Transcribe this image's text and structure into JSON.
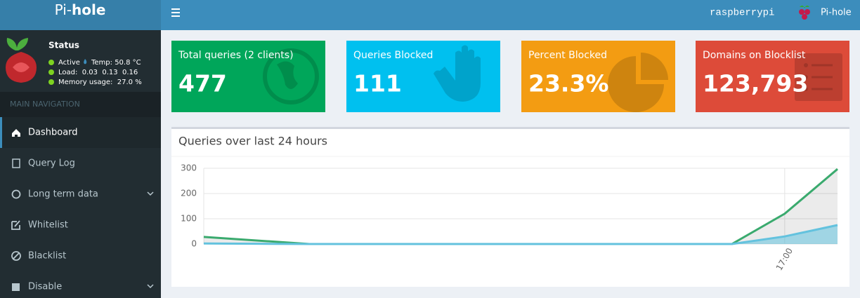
{
  "header": {
    "brand_prefix": "Pi-",
    "brand_bold": "hole",
    "hostname": "raspberrypi",
    "user": "Pi-hole"
  },
  "sidebar": {
    "status_title": "Status",
    "status": [
      "Active",
      "Temp: 50.8 °C",
      "Load:  0.03  0.13  0.16",
      "Memory usage:  27.0 %"
    ],
    "nav_header": "MAIN NAVIGATION",
    "nav": [
      "Dashboard",
      "Query Log",
      "Long term data",
      "Whitelist",
      "Blacklist",
      "Disable"
    ]
  },
  "boxes": [
    {
      "label": "Total queries (2 clients)",
      "value": "477"
    },
    {
      "label": "Queries Blocked",
      "value": "111"
    },
    {
      "label": "Percent Blocked",
      "value": "23.3%"
    },
    {
      "label": "Domains on Blocklist",
      "value": "123,793"
    }
  ],
  "chart_data": {
    "type": "line",
    "title": "Queries over last 24 hours",
    "categories": [
      null,
      null,
      null,
      null,
      null,
      null,
      null,
      null,
      null,
      null,
      null,
      "17:00",
      null
    ],
    "series": [
      {
        "color": "#3aaa6e",
        "values": [
          28,
          14,
          0,
          0,
          0,
          0,
          0,
          0,
          0,
          0,
          0,
          120,
          297
        ]
      },
      {
        "color": "#63c2de",
        "values": [
          2,
          1,
          0,
          0,
          0,
          0,
          0,
          0,
          0,
          0,
          0,
          30,
          75
        ]
      }
    ],
    "ylim": [
      0,
      300
    ],
    "yticks": [
      0,
      100,
      200,
      300
    ],
    "grid": true
  }
}
